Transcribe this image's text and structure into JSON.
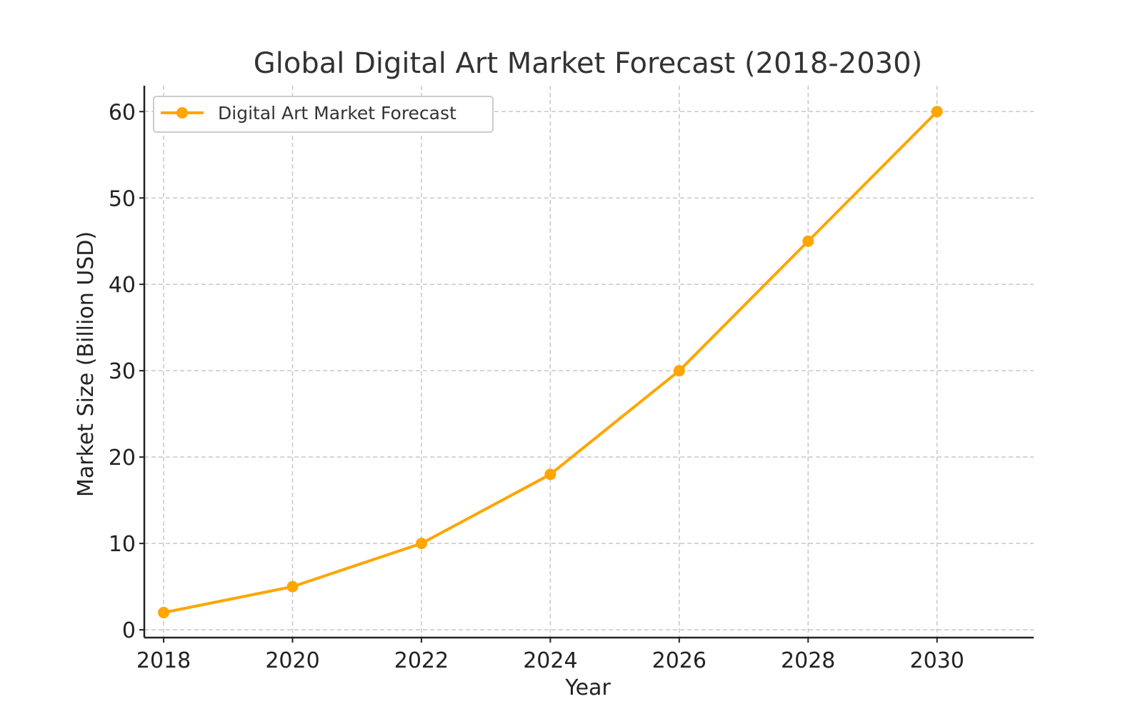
{
  "chart_data": {
    "type": "line",
    "title": "Global Digital Art Market Forecast (2018-2030)",
    "xlabel": "Year",
    "ylabel": "Market Size (Billion USD)",
    "x": [
      2018,
      2020,
      2022,
      2024,
      2026,
      2028,
      2030
    ],
    "x_ticks": [
      "2018",
      "2020",
      "2022",
      "2024",
      "2026",
      "2028",
      "2030"
    ],
    "y_ticks": [
      "0",
      "10",
      "20",
      "30",
      "40",
      "50",
      "60"
    ],
    "y_tick_values": [
      0,
      10,
      20,
      30,
      40,
      50,
      60
    ],
    "xlim": [
      2017.7,
      2031.5
    ],
    "ylim": [
      -0.9,
      63
    ],
    "grid": true,
    "legend_position": "upper-left",
    "series": [
      {
        "name": "Digital Art Market Forecast",
        "color": "#FFA500",
        "marker": "circle",
        "values": [
          2,
          5,
          10,
          18,
          30,
          45,
          60
        ]
      }
    ]
  }
}
